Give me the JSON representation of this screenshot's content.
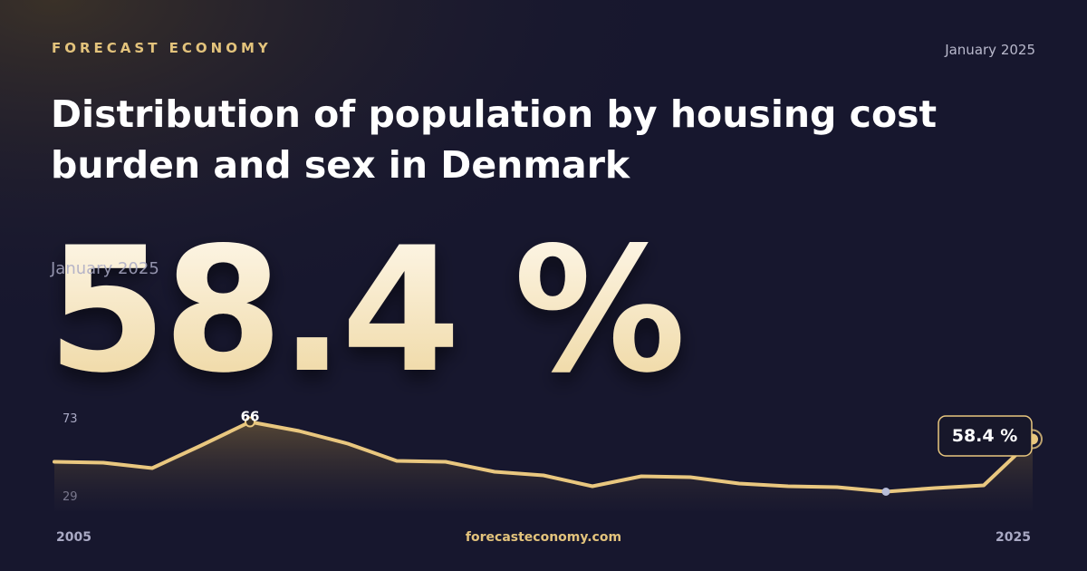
{
  "brand": "FORECAST ECONOMY",
  "date": "January 2025",
  "title_line1": "Distribution of population by housing cost",
  "title_line2": "burden and sex in Denmark",
  "headline_value": "58.4 %",
  "headline_date": "January 2025",
  "footer": "forecasteconomy.com",
  "chart_data": {
    "type": "area",
    "x": [
      2005,
      2006,
      2007,
      2008,
      2009,
      2010,
      2011,
      2012,
      2013,
      2014,
      2015,
      2016,
      2017,
      2018,
      2019,
      2020,
      2021,
      2022,
      2023,
      2024,
      2025
    ],
    "values": [
      48.4,
      48,
      45.6,
      55.6,
      66,
      62,
      56.4,
      48.8,
      48.4,
      44,
      42.4,
      37.6,
      42,
      41.6,
      38.8,
      37.6,
      37.2,
      35.2,
      36.8,
      38,
      58.4
    ],
    "value_labels": [
      null,
      null,
      null,
      null,
      null,
      null,
      null,
      null,
      null,
      null,
      null,
      null,
      null,
      null,
      null,
      null,
      null,
      null,
      null,
      null,
      "58.4 %"
    ],
    "color": "#e9c77f",
    "xlim": [
      2005,
      2025
    ],
    "xticks": [
      2005,
      2025
    ],
    "ylim": [
      29,
      73
    ],
    "yticks": [
      73,
      29
    ]
  }
}
